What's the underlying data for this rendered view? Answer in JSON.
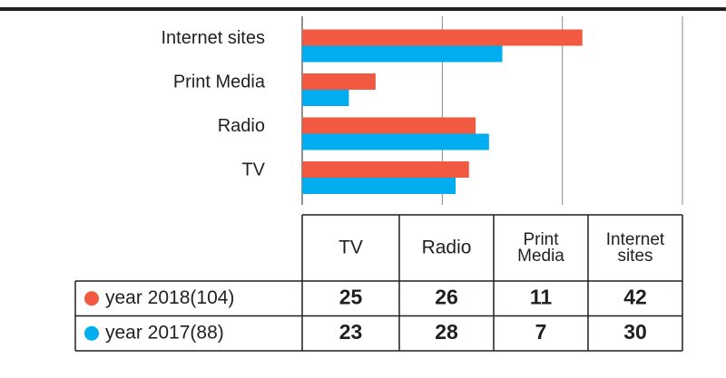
{
  "chart_data": {
    "type": "bar",
    "orientation": "horizontal",
    "categories": [
      "TV",
      "Radio",
      "Print Media",
      "Internet sites"
    ],
    "series": [
      {
        "name": "year 2018(104)",
        "color": "#f15a40",
        "values": [
          25,
          26,
          11,
          42
        ]
      },
      {
        "name": "year 2017(88)",
        "color": "#00aeef",
        "values": [
          23,
          28,
          7,
          30
        ]
      }
    ],
    "xlim": [
      0,
      57
    ],
    "xticks": [
      0,
      21,
      39,
      57
    ],
    "grid": true
  }
}
